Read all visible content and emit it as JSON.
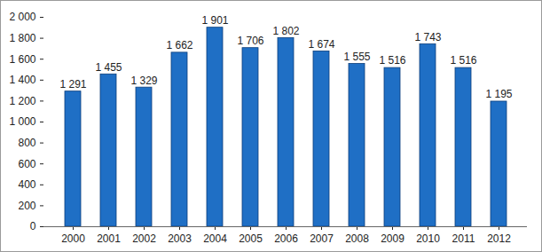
{
  "chart_data": {
    "type": "bar",
    "categories": [
      "2000",
      "2001",
      "2002",
      "2003",
      "2004",
      "2005",
      "2006",
      "2007",
      "2008",
      "2009",
      "2010",
      "2011",
      "2012"
    ],
    "values": [
      1291,
      1455,
      1329,
      1662,
      1901,
      1706,
      1802,
      1674,
      1555,
      1516,
      1743,
      1516,
      1195
    ],
    "value_labels": [
      "1 291",
      "1 455",
      "1 329",
      "1 662",
      "1 901",
      "1 706",
      "1 802",
      "1 674",
      "1 555",
      "1 516",
      "1 743",
      "1 516",
      "1 195"
    ],
    "data_labels": true,
    "color": "#1f6fc5",
    "ylim": [
      0,
      2000
    ],
    "yticks": [
      0,
      200,
      400,
      600,
      800,
      {
        "value": 1000,
        "label": "1 000"
      },
      {
        "value": 1200,
        "label": "1 200"
      },
      {
        "value": 1400,
        "label": "1 400"
      },
      {
        "value": 1600,
        "label": "1 600"
      },
      {
        "value": 1800,
        "label": "1 800"
      },
      {
        "value": 2000,
        "label": "2 000"
      }
    ],
    "grid": false
  }
}
